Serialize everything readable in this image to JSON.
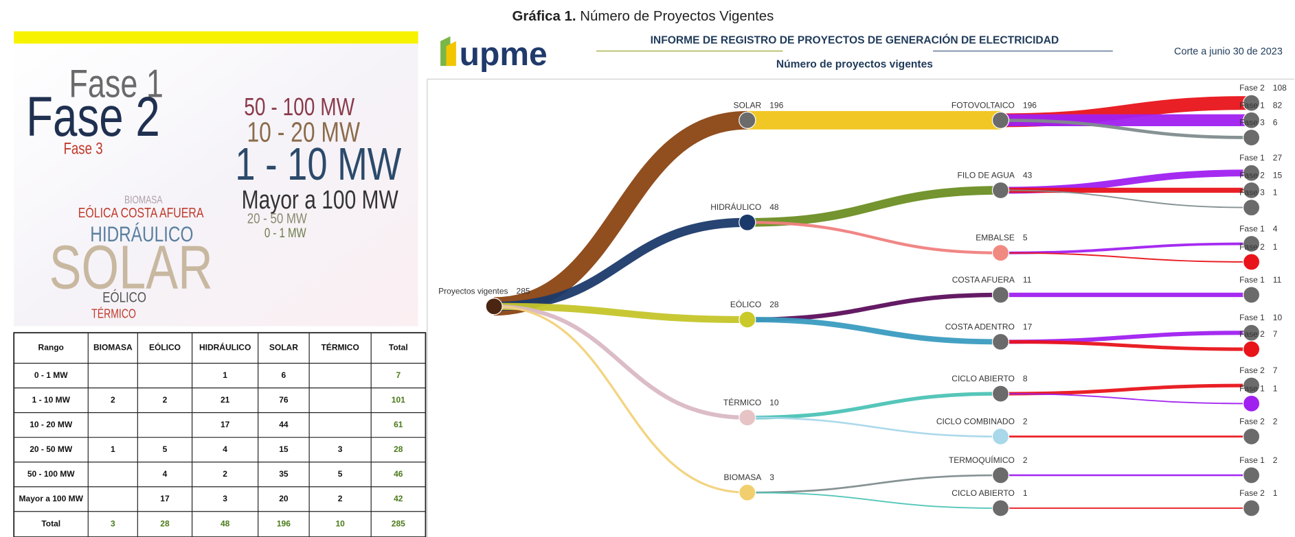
{
  "caption": {
    "label": "Gráfica 1.",
    "text": "Número de Proyectos Vigentes"
  },
  "word_cloud": {
    "words": [
      "Fase 1",
      "Fase 2",
      "Fase 3",
      "50 - 100 MW",
      "10 - 20 MW",
      "1 - 10 MW",
      "Mayor a 100 MW",
      "20 - 50 MW",
      "0 - 1 MW",
      "BIOMASA",
      "EÓLICA COSTA AFUERA",
      "HIDRÁULICO",
      "SOLAR",
      "EÓLICO",
      "TÉRMICO"
    ]
  },
  "table": {
    "header": [
      "Rango",
      "BIOMASA",
      "EÓLICO",
      "HIDRÁULICO",
      "SOLAR",
      "TÉRMICO",
      "Total"
    ],
    "rows": [
      [
        "0 - 1 MW",
        null,
        null,
        1,
        6,
        null,
        7
      ],
      [
        "1 - 10 MW",
        2,
        2,
        21,
        76,
        null,
        101
      ],
      [
        "10 - 20 MW",
        null,
        null,
        17,
        44,
        null,
        61
      ],
      [
        "20 - 50 MW",
        1,
        5,
        4,
        15,
        3,
        28
      ],
      [
        "50 - 100 MW",
        null,
        4,
        2,
        35,
        5,
        46
      ],
      [
        "Mayor a 100 MW",
        null,
        17,
        3,
        20,
        2,
        42
      ],
      [
        "Total",
        3,
        28,
        48,
        196,
        10,
        285
      ]
    ]
  },
  "report": {
    "logo": "upme",
    "title": "INFORME DE REGISTRO DE PROYECTOS DE GENERACIÓN DE ELECTRICIDAD",
    "subtitle": "Número de proyectos vigentes",
    "date": "Corte a junio 30 de 2023"
  },
  "chart_data": {
    "type": "sankey",
    "root": {
      "name": "Proyectos vigentes",
      "value": 285,
      "color": "#4a2511",
      "children": [
        {
          "name": "SOLAR",
          "value": 196,
          "color": "#6b6b6b",
          "link_color": "#8b4513",
          "children": [
            {
              "name": "FOTOVOLTAICO",
              "value": 196,
              "color": "#6b6b6b",
              "link_color": "#f0c419",
              "children": [
                {
                  "name": "Fase 2",
                  "value": 108,
                  "color": "#6b6b6b",
                  "link_color": "#e8141a"
                },
                {
                  "name": "Fase 1",
                  "value": 82,
                  "color": "#6b6b6b",
                  "link_color": "#a020f0"
                },
                {
                  "name": "Fase 3",
                  "value": 6,
                  "color": "#6b6b6b",
                  "link_color": "#7f8c8d"
                }
              ]
            }
          ]
        },
        {
          "name": "HIDRÁULICO",
          "value": 48,
          "color": "#1b3a6b",
          "link_color": "#1b3a6b",
          "children": [
            {
              "name": "FILO DE AGUA",
              "value": 43,
              "color": "#6b6b6b",
              "link_color": "#6b8e23",
              "children": [
                {
                  "name": "Fase 1",
                  "value": 27,
                  "color": "#6b6b6b",
                  "link_color": "#a020f0"
                },
                {
                  "name": "Fase 2",
                  "value": 15,
                  "color": "#6b6b6b",
                  "link_color": "#e8141a"
                },
                {
                  "name": "Fase 3",
                  "value": 1,
                  "color": "#6b6b6b",
                  "link_color": "#7f8c8d"
                }
              ]
            },
            {
              "name": "EMBALSE",
              "value": 5,
              "color": "#f08a80",
              "link_color": "#f08080",
              "children": [
                {
                  "name": "Fase 1",
                  "value": 4,
                  "color": "#6b6b6b",
                  "link_color": "#a020f0"
                },
                {
                  "name": "Fase 2",
                  "value": 1,
                  "color": "#e8141a",
                  "link_color": "#e8141a"
                }
              ]
            }
          ]
        },
        {
          "name": "EÓLICO",
          "value": 28,
          "color": "#c9c92a",
          "link_color": "#c5c52a",
          "children": [
            {
              "name": "COSTA AFUERA",
              "value": 11,
              "color": "#6b6b6b",
              "link_color": "#5c0f5c",
              "children": [
                {
                  "name": "Fase 1",
                  "value": 11,
                  "color": "#6b6b6b",
                  "link_color": "#a020f0"
                }
              ]
            },
            {
              "name": "COSTA ADENTRO",
              "value": 17,
              "color": "#6b6b6b",
              "link_color": "#3a9cc0",
              "children": [
                {
                  "name": "Fase 1",
                  "value": 10,
                  "color": "#6b6b6b",
                  "link_color": "#a020f0"
                },
                {
                  "name": "Fase 2",
                  "value": 7,
                  "color": "#e8141a",
                  "link_color": "#e8141a"
                }
              ]
            }
          ]
        },
        {
          "name": "TÉRMICO",
          "value": 10,
          "color": "#e6c4c6",
          "link_color": "#d9b8c4",
          "children": [
            {
              "name": "CICLO ABIERTO",
              "value": 8,
              "color": "#6b6b6b",
              "link_color": "#4cc3b5",
              "children": [
                {
                  "name": "Fase 2",
                  "value": 7,
                  "color": "#6b6b6b",
                  "link_color": "#e8141a"
                },
                {
                  "name": "Fase 1",
                  "value": 1,
                  "color": "#a020f0",
                  "link_color": "#a020f0"
                }
              ]
            },
            {
              "name": "CICLO COMBINADO",
              "value": 2,
              "color": "#a8d8ea",
              "link_color": "#a8d8ea",
              "children": [
                {
                  "name": "Fase 2",
                  "value": 2,
                  "color": "#6b6b6b",
                  "link_color": "#e8141a"
                }
              ]
            }
          ]
        },
        {
          "name": "BIOMASA",
          "value": 3,
          "color": "#f2cf6e",
          "link_color": "#f2d27a",
          "children": [
            {
              "name": "TERMOQUÍMICO",
              "value": 2,
              "color": "#6b6b6b",
              "link_color": "#7f8c8d",
              "children": [
                {
                  "name": "Fase 1",
                  "value": 2,
                  "color": "#6b6b6b",
                  "link_color": "#a020f0"
                }
              ]
            },
            {
              "name": "CICLO ABIERTO",
              "value": 1,
              "color": "#6b6b6b",
              "link_color": "#4cc3b5",
              "children": [
                {
                  "name": "Fase 2",
                  "value": 1,
                  "color": "#6b6b6b",
                  "link_color": "#e8141a"
                }
              ]
            }
          ]
        }
      ]
    }
  }
}
